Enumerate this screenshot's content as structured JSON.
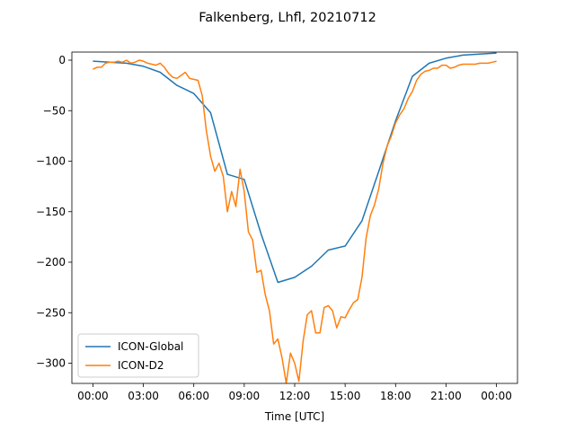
{
  "chart_data": {
    "type": "line",
    "title": "Falkenberg, Lhfl, 20210712",
    "xlabel": "Time [UTC]",
    "ylabel": "",
    "x_unit": "hours UTC",
    "xlim": [
      -1.25,
      25.25
    ],
    "ylim": [
      -320,
      8
    ],
    "xticks": [
      {
        "value": 0,
        "label": "00:00"
      },
      {
        "value": 3,
        "label": "03:00"
      },
      {
        "value": 6,
        "label": "06:00"
      },
      {
        "value": 9,
        "label": "09:00"
      },
      {
        "value": 12,
        "label": "12:00"
      },
      {
        "value": 15,
        "label": "15:00"
      },
      {
        "value": 18,
        "label": "18:00"
      },
      {
        "value": 21,
        "label": "21:00"
      },
      {
        "value": 24,
        "label": "00:00"
      }
    ],
    "yticks": [
      {
        "value": 0,
        "label": "0"
      },
      {
        "value": -50,
        "label": "−50"
      },
      {
        "value": -100,
        "label": "−100"
      },
      {
        "value": -150,
        "label": "−150"
      },
      {
        "value": -200,
        "label": "−200"
      },
      {
        "value": -250,
        "label": "−250"
      },
      {
        "value": -300,
        "label": "−300"
      }
    ],
    "legend_position": "lower-left",
    "grid": false,
    "series": [
      {
        "name": "ICON-Global",
        "color": "#1f77b4",
        "x": [
          0,
          1,
          2,
          3,
          4,
          5,
          6,
          7,
          8,
          9,
          10,
          11,
          12,
          13,
          14,
          15,
          16,
          17,
          18,
          19,
          20,
          21,
          22,
          23,
          24
        ],
        "y": [
          -1,
          -2,
          -3,
          -6,
          -12,
          -25,
          -33,
          -52,
          -113,
          -118,
          -172,
          -220,
          -215,
          -204,
          -188,
          -184,
          -159,
          -110,
          -60,
          -16,
          -3,
          2,
          5,
          6,
          7
        ]
      },
      {
        "name": "ICON-D2",
        "color": "#ff7f0e",
        "x": [
          0,
          0.25,
          0.5,
          0.75,
          1,
          1.25,
          1.5,
          1.75,
          2,
          2.25,
          2.5,
          2.75,
          3,
          3.25,
          3.5,
          3.75,
          4,
          4.25,
          4.5,
          4.75,
          5,
          5.25,
          5.5,
          5.75,
          6,
          6.25,
          6.5,
          6.75,
          7,
          7.25,
          7.5,
          7.75,
          8,
          8.25,
          8.5,
          8.75,
          9,
          9.25,
          9.5,
          9.75,
          10,
          10.25,
          10.5,
          10.75,
          11,
          11.25,
          11.5,
          11.75,
          12,
          12.25,
          12.5,
          12.75,
          13,
          13.25,
          13.5,
          13.75,
          14,
          14.25,
          14.5,
          14.75,
          15,
          15.25,
          15.5,
          15.75,
          16,
          16.25,
          16.5,
          16.75,
          17,
          17.25,
          17.5,
          17.75,
          18,
          18.25,
          18.5,
          18.75,
          19,
          19.25,
          19.5,
          19.75,
          20,
          20.25,
          20.5,
          20.75,
          21,
          21.25,
          21.5,
          21.75,
          22,
          22.25,
          22.5,
          22.75,
          23,
          23.25,
          23.5,
          23.75,
          24
        ],
        "y": [
          -9,
          -7,
          -7,
          -3,
          -2,
          -2,
          -1,
          -2,
          0,
          -3,
          -2,
          0,
          -1,
          -3,
          -4,
          -5,
          -3,
          -7,
          -13,
          -17,
          -18,
          -15,
          -12,
          -18,
          -19,
          -20,
          -35,
          -70,
          -95,
          -110,
          -102,
          -115,
          -150,
          -130,
          -145,
          -108,
          -130,
          -170,
          -178,
          -210,
          -208,
          -232,
          -248,
          -281,
          -276,
          -295,
          -320,
          -290,
          -300,
          -318,
          -278,
          -252,
          -248,
          -270,
          -270,
          -245,
          -243,
          -248,
          -265,
          -254,
          -255,
          -247,
          -240,
          -237,
          -215,
          -176,
          -154,
          -143,
          -127,
          -102,
          -85,
          -75,
          -62,
          -54,
          -48,
          -38,
          -31,
          -20,
          -14,
          -11,
          -10,
          -8,
          -8,
          -5,
          -5,
          -8,
          -7,
          -5,
          -4,
          -4,
          -4,
          -4,
          -3,
          -3,
          -3,
          -2,
          -1
        ]
      }
    ]
  }
}
